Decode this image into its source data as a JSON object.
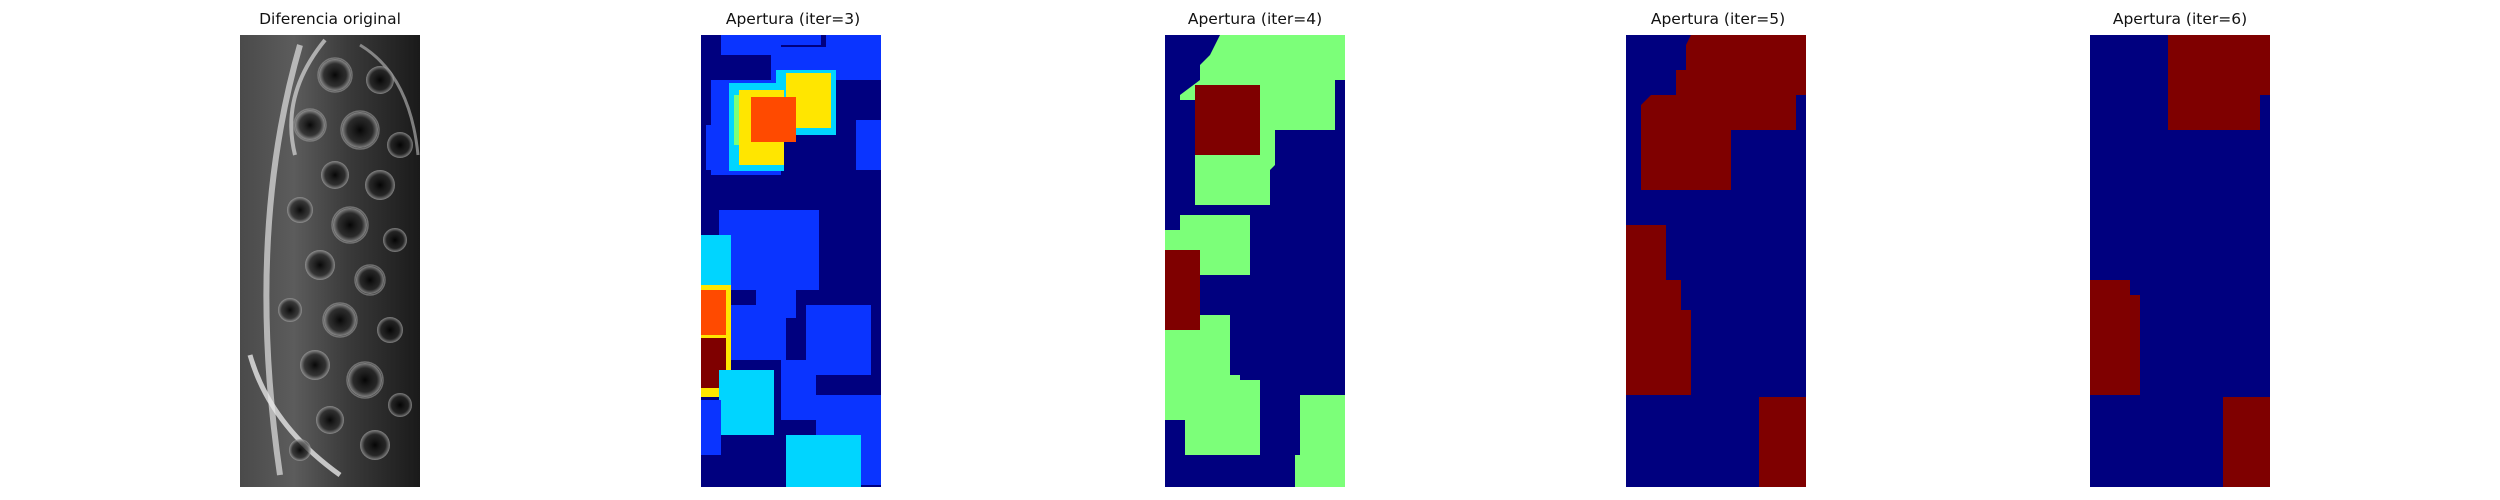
{
  "colors": {
    "navy": "#00007f",
    "blue": "#0a34ff",
    "cyan": "#00d5ff",
    "green": "#7cff79",
    "yellow": "#ffe600",
    "orange": "#ff4a00",
    "maroon": "#7f0000"
  },
  "panels": [
    {
      "title": "Diferencia original"
    },
    {
      "title": "Apertura (iter=3)"
    },
    {
      "title": "Apertura (iter=4)"
    },
    {
      "title": "Apertura (iter=5)"
    },
    {
      "title": "Apertura (iter=6)"
    }
  ]
}
